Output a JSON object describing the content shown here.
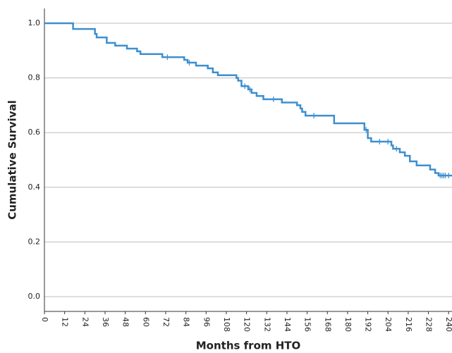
{
  "chart_data": {
    "type": "step",
    "xlabel": "Months from HTO",
    "ylabel": "Cumulative Survival",
    "color": "#3d8fd0",
    "grid": true,
    "xlim": [
      0,
      242
    ],
    "ylim": [
      -0.054,
      1.054
    ],
    "xticks": [
      0,
      12,
      24,
      36,
      48,
      60,
      72,
      84,
      96,
      108,
      120,
      132,
      144,
      156,
      168,
      180,
      192,
      204,
      216,
      228,
      240
    ],
    "yticks": [
      {
        "value": 0,
        "label": "0.0"
      },
      0.2,
      0.4,
      0.6,
      0.8,
      {
        "value": 1,
        "label": "1.0"
      }
    ],
    "steps": {
      "x": [
        0,
        17,
        30,
        31,
        37,
        42,
        49,
        55,
        57,
        70,
        83,
        85,
        90,
        97,
        100,
        103,
        114,
        115,
        117,
        121,
        123,
        126,
        130,
        141,
        150,
        152,
        153,
        155,
        172,
        190,
        192,
        194,
        206,
        207,
        211,
        214,
        217,
        221,
        229,
        232,
        234,
        242
      ],
      "y": [
        1.0,
        0.979,
        0.961,
        0.948,
        0.928,
        0.918,
        0.907,
        0.897,
        0.887,
        0.876,
        0.866,
        0.856,
        0.845,
        0.835,
        0.82,
        0.81,
        0.8,
        0.79,
        0.77,
        0.758,
        0.745,
        0.734,
        0.722,
        0.71,
        0.7,
        0.688,
        0.676,
        0.662,
        0.634,
        0.61,
        0.58,
        0.567,
        0.553,
        0.541,
        0.528,
        0.515,
        0.495,
        0.48,
        0.465,
        0.452,
        0.443,
        0.443
      ]
    },
    "censored": {
      "x": [
        73,
        86,
        119,
        122,
        136,
        160,
        191,
        199,
        204,
        209,
        235,
        236,
        237,
        238,
        240
      ],
      "y": [
        0.876,
        0.856,
        0.77,
        0.758,
        0.722,
        0.662,
        0.61,
        0.567,
        0.567,
        0.541,
        0.443,
        0.443,
        0.443,
        0.443,
        0.443
      ]
    }
  }
}
